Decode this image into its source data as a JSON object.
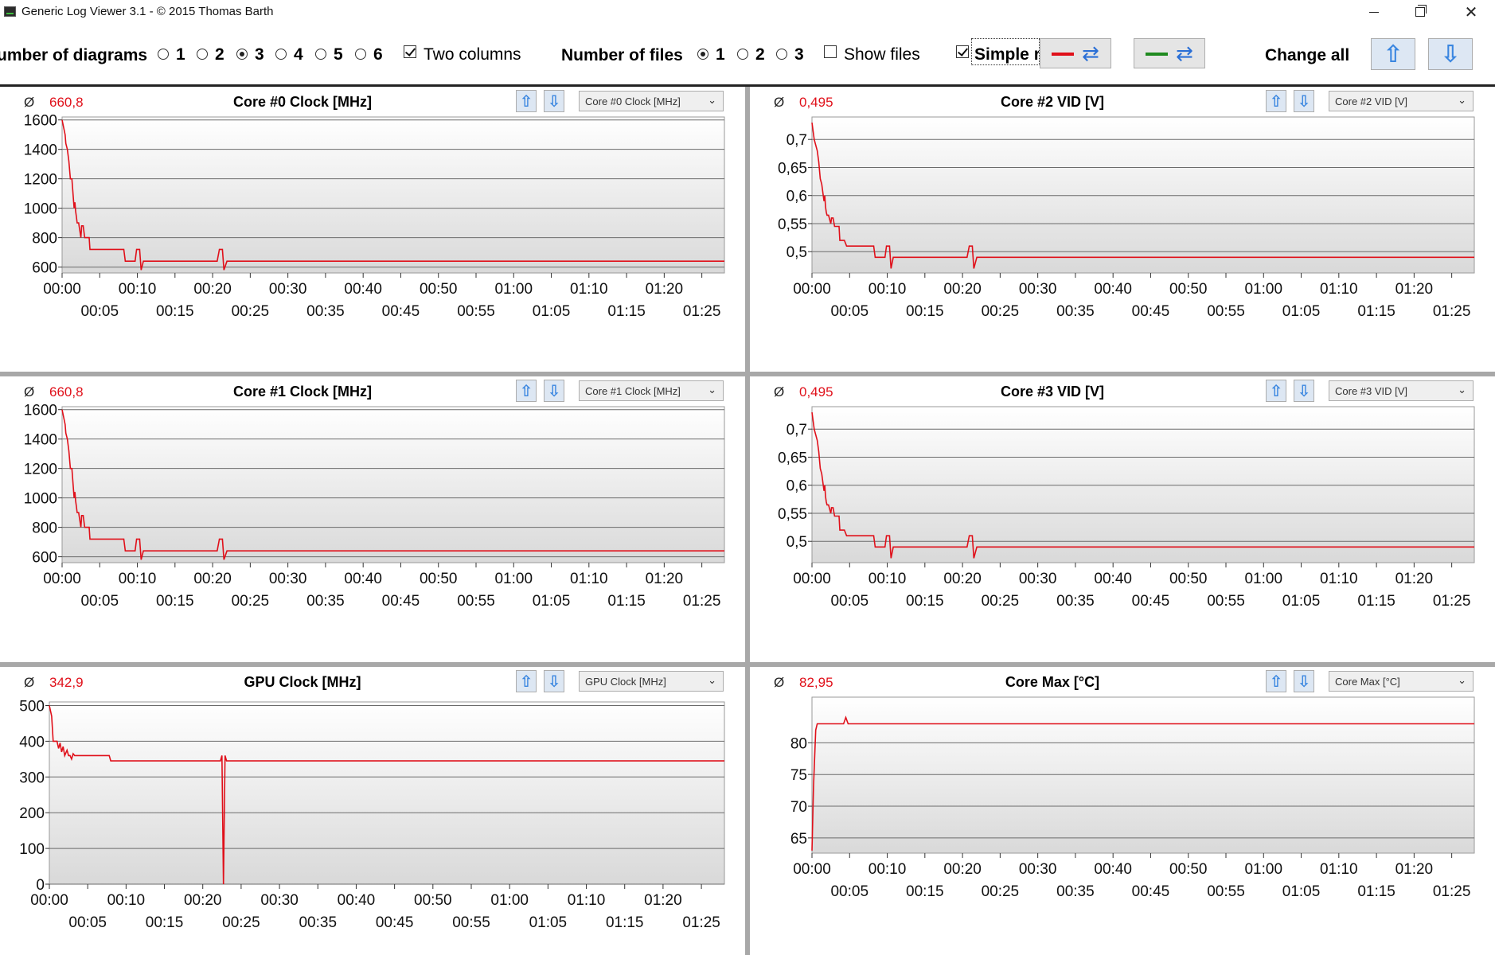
{
  "window": {
    "title": "Generic Log Viewer 3.1 - © 2015 Thomas Barth"
  },
  "toolbar": {
    "diagrams_label": "umber of diagrams",
    "diagram_options": [
      "1",
      "2",
      "3",
      "4",
      "5",
      "6"
    ],
    "diagrams_selected": "3",
    "two_columns_label": "Two columns",
    "two_columns_checked": true,
    "files_label": "Number of files",
    "file_options": [
      "1",
      "2",
      "3"
    ],
    "files_selected": "1",
    "show_files_label": "Show files",
    "show_files_checked": false,
    "simple_label": "Simple r",
    "simple_checked": true,
    "file1_color": "#e0101a",
    "file2_color": "#1f8a1f",
    "change_all_label": "Change all",
    "up_icon": "arrow-up-icon",
    "down_icon": "arrow-down-icon",
    "swap_icon": "swap-icon"
  },
  "panels": [
    {
      "avg_symbol": "Ø",
      "avg": "660,8",
      "title": "Core #0 Clock [MHz]",
      "select": "Core #0 Clock [MHz]"
    },
    {
      "avg_symbol": "Ø",
      "avg": "0,495",
      "title": "Core #2 VID [V]",
      "select": "Core #2 VID [V]"
    },
    {
      "avg_symbol": "Ø",
      "avg": "660,8",
      "title": "Core #1 Clock [MHz]",
      "select": "Core #1 Clock [MHz]"
    },
    {
      "avg_symbol": "Ø",
      "avg": "0,495",
      "title": "Core #3 VID [V]",
      "select": "Core #3 VID [V]"
    },
    {
      "avg_symbol": "Ø",
      "avg": "342,9",
      "title": "GPU Clock [MHz]",
      "select": "GPU Clock [MHz]"
    },
    {
      "avg_symbol": "Ø",
      "avg": "82,95",
      "title": "Core Max [°C]",
      "select": "Core Max [°C]"
    }
  ],
  "chart_data": [
    {
      "type": "line",
      "title": "Core #0 Clock [MHz]",
      "color": "#e0101a",
      "xlim": [
        0,
        88
      ],
      "ylim": [
        560,
        1620
      ],
      "yticks": [
        600,
        800,
        1000,
        1200,
        1400,
        1600
      ],
      "ytick_labels": [
        "600",
        "800",
        "1000",
        "1200",
        "1400",
        "1600"
      ],
      "xticks_major": [
        "00:00",
        "00:10",
        "00:20",
        "00:30",
        "00:40",
        "00:50",
        "01:00",
        "01:10",
        "01:20"
      ],
      "xticks_minor": [
        "00:05",
        "00:15",
        "00:25",
        "00:35",
        "00:45",
        "00:55",
        "01:05",
        "01:15",
        "01:25"
      ],
      "x": [
        0,
        0.4,
        0.5,
        0.7,
        0.9,
        1.1,
        1.3,
        1.6,
        1.7,
        1.8,
        1.9,
        2.0,
        2.2,
        2.5,
        2.6,
        2.8,
        3.0,
        3.3,
        3.6,
        3.7,
        4.3,
        4.6,
        8.2,
        8.4,
        9.7,
        9.9,
        10.3,
        10.5,
        10.8,
        11.0,
        20.6,
        20.9,
        21.3,
        21.5,
        21.9,
        22.2,
        88
      ],
      "y": [
        1600,
        1500,
        1440,
        1400,
        1320,
        1200,
        1200,
        1000,
        1040,
        980,
        940,
        900,
        900,
        800,
        880,
        880,
        800,
        800,
        800,
        720,
        720,
        720,
        720,
        640,
        640,
        720,
        720,
        580,
        640,
        640,
        640,
        720,
        720,
        580,
        640,
        640,
        640
      ]
    },
    {
      "type": "line",
      "title": "Core #2 VID [V]",
      "color": "#e0101a",
      "xlim": [
        0,
        88
      ],
      "ylim": [
        0.462,
        0.74
      ],
      "yticks": [
        0.5,
        0.55,
        0.6,
        0.65,
        0.7
      ],
      "ytick_labels": [
        "0,5",
        "0,55",
        "0,6",
        "0,65",
        "0,7"
      ],
      "xticks_major": [
        "00:00",
        "00:10",
        "00:20",
        "00:30",
        "00:40",
        "00:50",
        "01:00",
        "01:10",
        "01:20"
      ],
      "xticks_minor": [
        "00:05",
        "00:15",
        "00:25",
        "00:35",
        "00:45",
        "00:55",
        "01:05",
        "01:15",
        "01:25"
      ],
      "x": [
        0,
        0.3,
        0.5,
        0.7,
        0.9,
        1.1,
        1.3,
        1.6,
        1.7,
        1.8,
        1.9,
        2.0,
        2.2,
        2.5,
        2.6,
        2.8,
        3.0,
        3.3,
        3.6,
        3.7,
        4.3,
        4.6,
        8.2,
        8.4,
        9.7,
        9.9,
        10.3,
        10.5,
        10.8,
        11.0,
        20.6,
        20.9,
        21.3,
        21.5,
        21.9,
        22.2,
        88
      ],
      "y": [
        0.73,
        0.7,
        0.69,
        0.68,
        0.66,
        0.63,
        0.62,
        0.59,
        0.6,
        0.58,
        0.57,
        0.565,
        0.565,
        0.55,
        0.56,
        0.56,
        0.545,
        0.545,
        0.545,
        0.52,
        0.52,
        0.51,
        0.51,
        0.49,
        0.49,
        0.51,
        0.51,
        0.47,
        0.49,
        0.49,
        0.49,
        0.51,
        0.51,
        0.47,
        0.49,
        0.49,
        0.49
      ]
    },
    {
      "type": "line",
      "title": "Core #1 Clock [MHz]",
      "color": "#e0101a",
      "xlim": [
        0,
        88
      ],
      "ylim": [
        560,
        1620
      ],
      "yticks": [
        600,
        800,
        1000,
        1200,
        1400,
        1600
      ],
      "ytick_labels": [
        "600",
        "800",
        "1000",
        "1200",
        "1400",
        "1600"
      ],
      "xticks_major": [
        "00:00",
        "00:10",
        "00:20",
        "00:30",
        "00:40",
        "00:50",
        "01:00",
        "01:10",
        "01:20"
      ],
      "xticks_minor": [
        "00:05",
        "00:15",
        "00:25",
        "00:35",
        "00:45",
        "00:55",
        "01:05",
        "01:15",
        "01:25"
      ],
      "x": [
        0,
        0.4,
        0.5,
        0.7,
        0.9,
        1.1,
        1.3,
        1.6,
        1.7,
        1.8,
        1.9,
        2.0,
        2.2,
        2.5,
        2.6,
        2.8,
        3.0,
        3.3,
        3.6,
        3.7,
        4.3,
        4.6,
        8.2,
        8.4,
        9.7,
        9.9,
        10.3,
        10.5,
        10.8,
        11.0,
        20.6,
        20.9,
        21.3,
        21.5,
        21.9,
        22.2,
        88
      ],
      "y": [
        1600,
        1500,
        1440,
        1400,
        1320,
        1200,
        1200,
        1000,
        1040,
        980,
        940,
        900,
        900,
        800,
        880,
        880,
        800,
        800,
        800,
        720,
        720,
        720,
        720,
        640,
        640,
        720,
        720,
        580,
        640,
        640,
        640,
        720,
        720,
        580,
        640,
        640,
        640
      ]
    },
    {
      "type": "line",
      "title": "Core #3 VID [V]",
      "color": "#e0101a",
      "xlim": [
        0,
        88
      ],
      "ylim": [
        0.462,
        0.74
      ],
      "yticks": [
        0.5,
        0.55,
        0.6,
        0.65,
        0.7
      ],
      "ytick_labels": [
        "0,5",
        "0,55",
        "0,6",
        "0,65",
        "0,7"
      ],
      "xticks_major": [
        "00:00",
        "00:10",
        "00:20",
        "00:30",
        "00:40",
        "00:50",
        "01:00",
        "01:10",
        "01:20"
      ],
      "xticks_minor": [
        "00:05",
        "00:15",
        "00:25",
        "00:35",
        "00:45",
        "00:55",
        "01:05",
        "01:15",
        "01:25"
      ],
      "x": [
        0,
        0.3,
        0.5,
        0.7,
        0.9,
        1.1,
        1.3,
        1.6,
        1.7,
        1.8,
        1.9,
        2.0,
        2.2,
        2.5,
        2.6,
        2.8,
        3.0,
        3.3,
        3.6,
        3.7,
        4.3,
        4.6,
        8.2,
        8.4,
        9.7,
        9.9,
        10.3,
        10.5,
        10.8,
        11.0,
        20.6,
        20.9,
        21.3,
        21.5,
        21.9,
        22.2,
        88
      ],
      "y": [
        0.73,
        0.7,
        0.69,
        0.68,
        0.66,
        0.63,
        0.62,
        0.59,
        0.6,
        0.58,
        0.57,
        0.565,
        0.565,
        0.55,
        0.56,
        0.56,
        0.545,
        0.545,
        0.545,
        0.52,
        0.52,
        0.51,
        0.51,
        0.49,
        0.49,
        0.51,
        0.51,
        0.47,
        0.49,
        0.49,
        0.49,
        0.51,
        0.51,
        0.47,
        0.49,
        0.49,
        0.49
      ]
    },
    {
      "type": "line",
      "title": "GPU Clock [MHz]",
      "color": "#e0101a",
      "xlim": [
        0,
        88
      ],
      "ylim": [
        0,
        510
      ],
      "yticks": [
        0,
        100,
        200,
        300,
        400,
        500
      ],
      "ytick_labels": [
        "0",
        "100",
        "200",
        "300",
        "400",
        "500"
      ],
      "xticks_major": [
        "00:00",
        "00:10",
        "00:20",
        "00:30",
        "00:40",
        "00:50",
        "01:00",
        "01:10",
        "01:20"
      ],
      "xticks_minor": [
        "00:05",
        "00:15",
        "00:25",
        "00:35",
        "00:45",
        "00:55",
        "01:05",
        "01:15",
        "01:25"
      ],
      "x": [
        0,
        0.3,
        0.5,
        1.0,
        1.2,
        1.4,
        1.6,
        1.8,
        2.0,
        2.3,
        2.5,
        2.7,
        2.9,
        3.1,
        3.3,
        3.5,
        4.0,
        4.2,
        7.8,
        8.0,
        9.7,
        9.9,
        10.4,
        10.6,
        22.3,
        22.5,
        22.7,
        22.9,
        23.1,
        23.3,
        88
      ],
      "y": [
        500,
        470,
        400,
        400,
        380,
        395,
        370,
        385,
        360,
        375,
        360,
        360,
        350,
        365,
        360,
        360,
        360,
        360,
        360,
        345,
        345,
        345,
        345,
        345,
        345,
        360,
        0,
        360,
        345,
        345,
        345
      ]
    },
    {
      "type": "line",
      "title": "Core Max [°C]",
      "color": "#e0101a",
      "xlim": [
        0,
        88
      ],
      "ylim": [
        62.6,
        87.2
      ],
      "yticks": [
        65,
        70,
        75,
        80
      ],
      "ytick_labels": [
        "65",
        "70",
        "75",
        "80"
      ],
      "xticks_major": [
        "00:00",
        "00:10",
        "00:20",
        "00:30",
        "00:40",
        "00:50",
        "01:00",
        "01:10",
        "01:20"
      ],
      "xticks_minor": [
        "00:05",
        "00:15",
        "00:25",
        "00:35",
        "00:45",
        "00:55",
        "01:05",
        "01:15",
        "01:25"
      ],
      "x": [
        0,
        0.2,
        0.5,
        0.7,
        1.2,
        4.2,
        4.5,
        4.8,
        88
      ],
      "y": [
        63,
        73,
        82,
        83,
        83,
        83,
        84,
        83,
        83
      ]
    }
  ]
}
